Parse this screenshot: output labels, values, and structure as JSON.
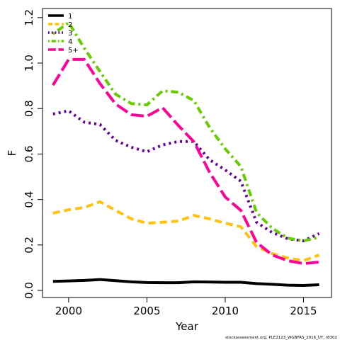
{
  "chart_data": {
    "type": "line",
    "x_label": "Year",
    "y_label": "F",
    "footnote": "stockassessment.org, PLE2123_WGBFAS_2016_UT, r8302",
    "x": [
      1999,
      2000,
      2001,
      2002,
      2003,
      2004,
      2005,
      2006,
      2007,
      2008,
      2009,
      2010,
      2011,
      2012,
      2013,
      2014,
      2015,
      2016
    ],
    "xlim": [
      1998.33,
      2016.79
    ],
    "xticks": [
      2000,
      2005,
      2010,
      2015
    ],
    "ylim": [
      -0.031,
      1.24
    ],
    "yticks": [
      {
        "value": 0,
        "label": "0.0"
      },
      0.2,
      0.4,
      0.6,
      0.8,
      {
        "value": 1,
        "label": "1.0"
      },
      1.2
    ],
    "legend": "top-left",
    "series": [
      {
        "name": "1",
        "color": "#000000",
        "dash": "solid",
        "values": [
          0.04,
          0.042,
          0.044,
          0.048,
          0.043,
          0.038,
          0.035,
          0.034,
          0.034,
          0.038,
          0.037,
          0.036,
          0.036,
          0.03,
          0.027,
          0.023,
          0.022,
          0.025
        ]
      },
      {
        "name": "2",
        "color": "#ffc20e",
        "dash": "dashed",
        "values": [
          0.34,
          0.355,
          0.365,
          0.39,
          0.352,
          0.315,
          0.296,
          0.3,
          0.305,
          0.33,
          0.315,
          0.296,
          0.28,
          0.193,
          0.162,
          0.143,
          0.131,
          0.156
        ]
      },
      {
        "name": "3",
        "color": "#660099",
        "dash": "dotted",
        "values": [
          0.776,
          0.79,
          0.74,
          0.73,
          0.66,
          0.63,
          0.61,
          0.64,
          0.655,
          0.655,
          0.575,
          0.53,
          0.48,
          0.3,
          0.255,
          0.227,
          0.218,
          0.25
        ]
      },
      {
        "name": "4",
        "color": "#66cc00",
        "dash": "dotdash",
        "values": [
          1.128,
          1.178,
          1.065,
          0.963,
          0.863,
          0.822,
          0.816,
          0.878,
          0.872,
          0.835,
          0.717,
          0.623,
          0.545,
          0.343,
          0.274,
          0.23,
          0.218,
          0.234
        ]
      },
      {
        "name": "5+",
        "color": "#ff0099",
        "dash": "longdash",
        "values": [
          0.903,
          1.016,
          1.016,
          0.91,
          0.82,
          0.773,
          0.766,
          0.804,
          0.726,
          0.654,
          0.52,
          0.411,
          0.352,
          0.212,
          0.156,
          0.131,
          0.118,
          0.125
        ]
      }
    ]
  }
}
